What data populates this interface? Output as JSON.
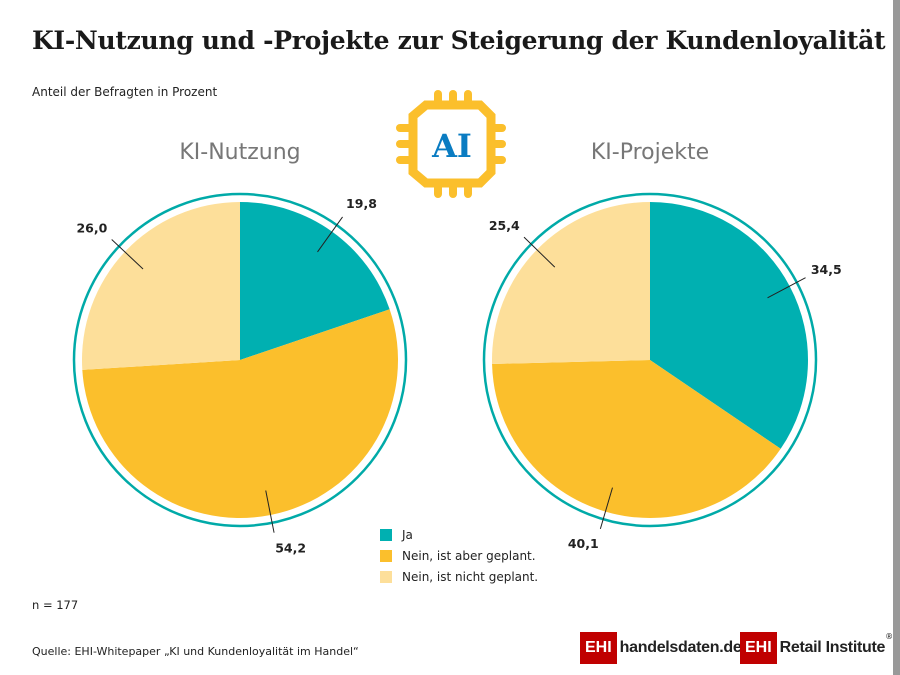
{
  "title": "KI-Nutzung und -Projekte zur Steigerung der Kundenloyalität",
  "subtitle": "Anteil der Befragten in Prozent",
  "icon": {
    "name": "ai-chip-icon",
    "text": "AI"
  },
  "colors": {
    "Ja": "#00b0b1",
    "geplant": "#fbbf2c",
    "nicht": "#fddf9a",
    "ring": "#00aaa8",
    "chip": "#fbbf2c",
    "chip_text": "#0a7cc2",
    "brand": "#c00000"
  },
  "chart_data": [
    {
      "type": "pie",
      "title": "KI-Nutzung",
      "categories": [
        "Ja",
        "Nein, ist aber geplant.",
        "Nein, ist nicht geplant."
      ],
      "values": [
        19.8,
        54.2,
        26.0
      ],
      "labels": [
        "19,8",
        "54,2",
        "26,0"
      ]
    },
    {
      "type": "pie",
      "title": "KI-Projekte",
      "categories": [
        "Ja",
        "Nein, ist aber geplant.",
        "Nein, ist nicht geplant."
      ],
      "values": [
        34.5,
        40.1,
        25.4
      ],
      "labels": [
        "34,5",
        "40,1",
        "25,4"
      ]
    }
  ],
  "legend": [
    "Ja",
    "Nein, ist aber geplant.",
    "Nein, ist nicht geplant."
  ],
  "n": "n = 177",
  "source": "Quelle: EHI-Whitepaper „KI und Kundenloyalität im Handel“",
  "logos": {
    "ehi": "EHI",
    "handelsdaten": "handelsdaten.de",
    "retail": "Retail Institute",
    "reg": "®"
  }
}
